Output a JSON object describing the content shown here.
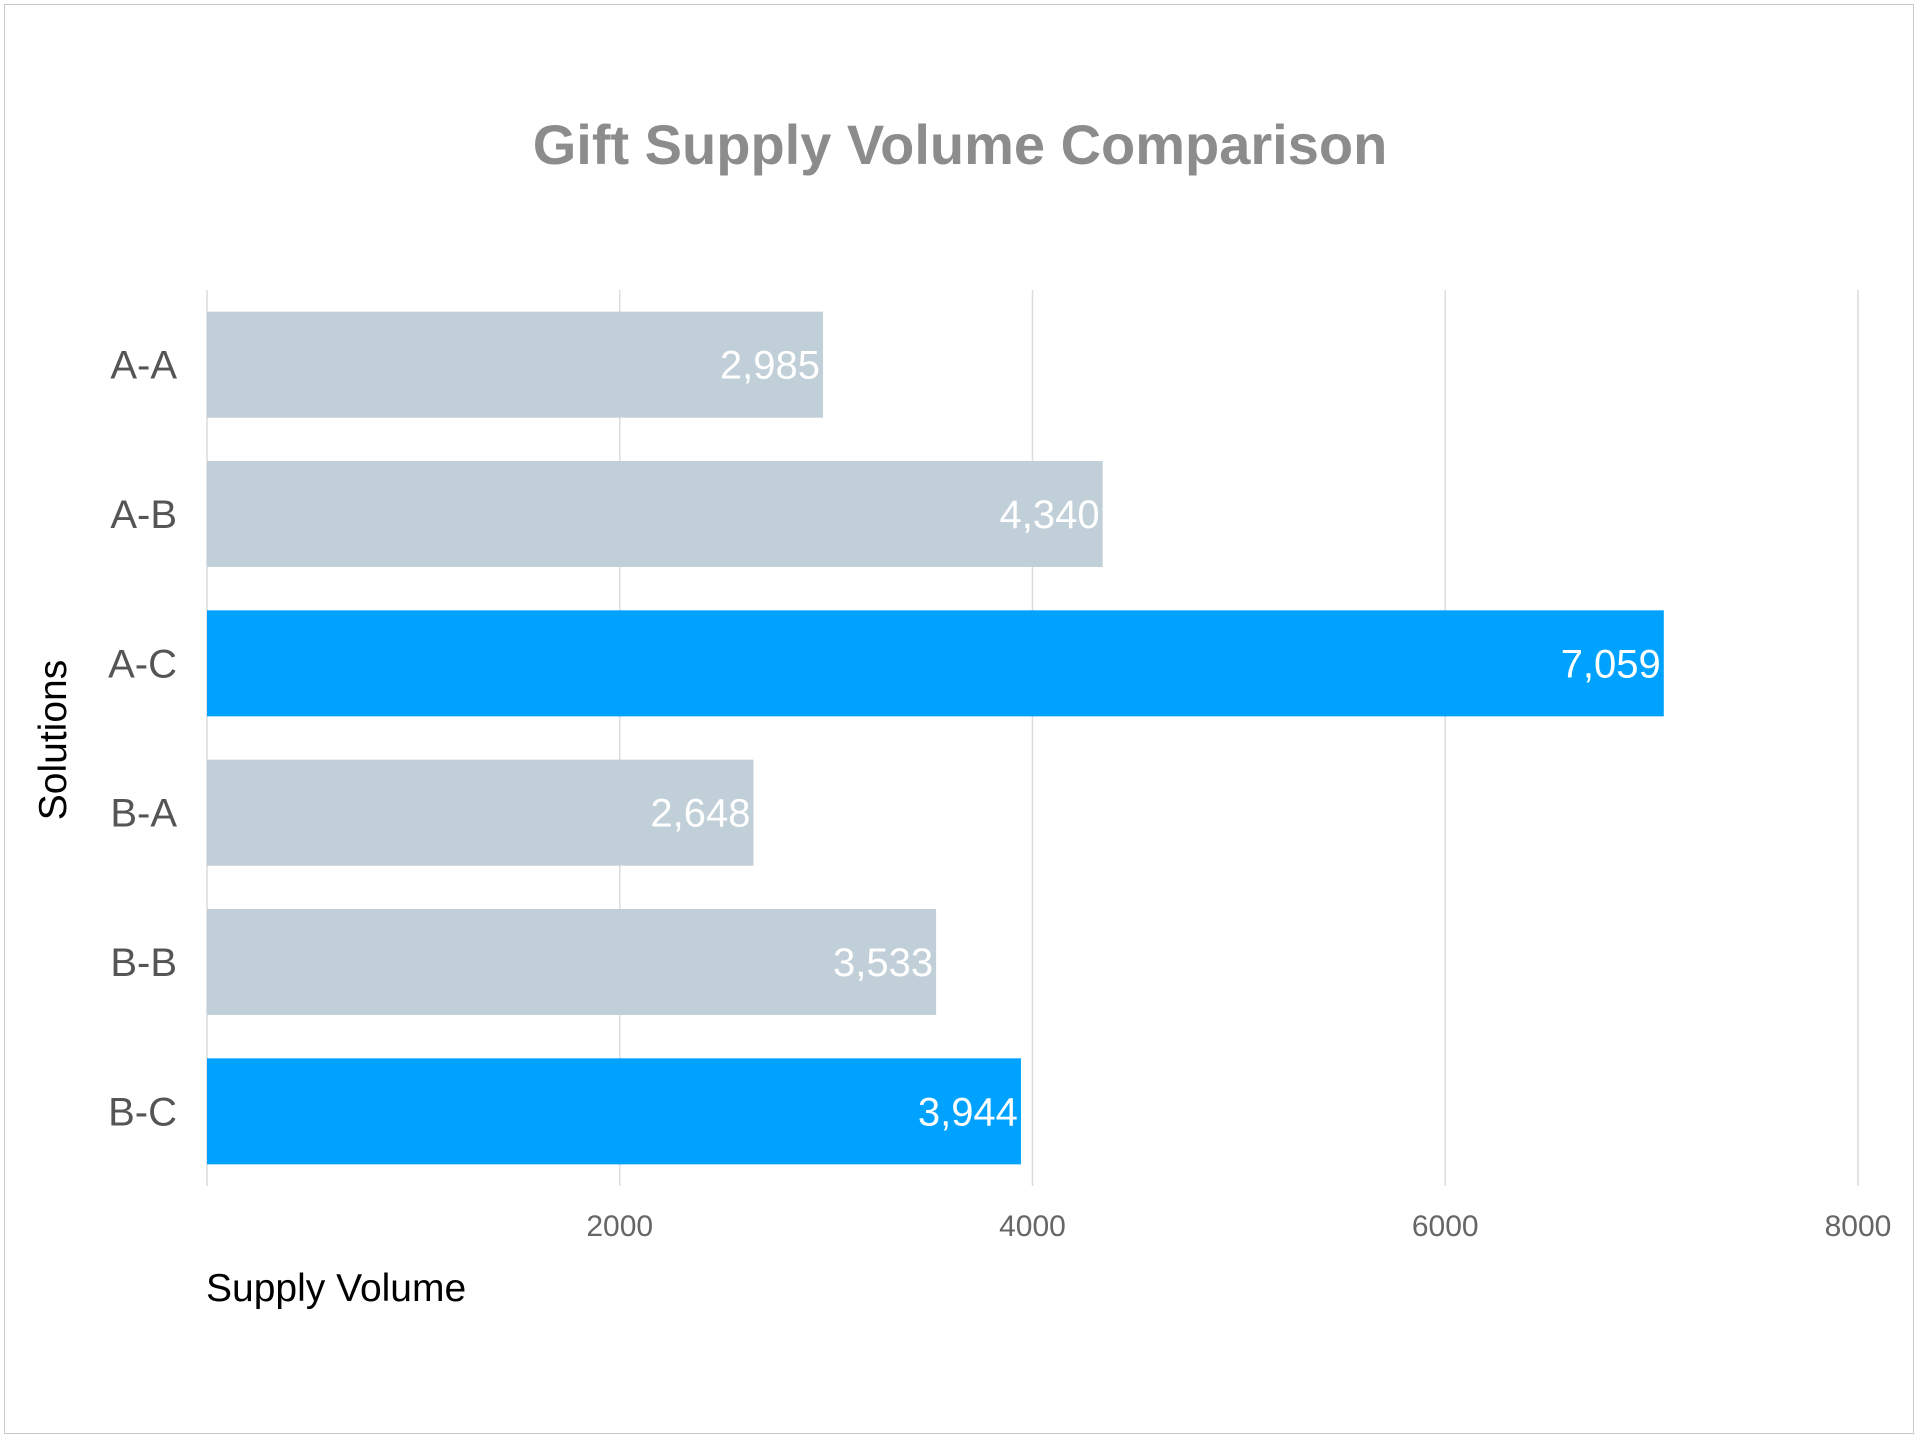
{
  "chart_data": {
    "type": "bar",
    "orientation": "horizontal",
    "title": "Gift Supply Volume Comparison",
    "xlabel": "Supply Volume",
    "ylabel": "Solutions",
    "categories": [
      "A-A",
      "A-B",
      "A-C",
      "B-A",
      "B-B",
      "B-C"
    ],
    "values": [
      2985,
      4340,
      7059,
      2648,
      3533,
      3944
    ],
    "value_labels": [
      "2,985",
      "4,340",
      "7,059",
      "2,648",
      "3,533",
      "3,944"
    ],
    "highlighted": [
      false,
      false,
      true,
      false,
      false,
      true
    ],
    "xlim": [
      0,
      8000
    ],
    "xticks": [
      2000,
      4000,
      6000,
      8000
    ],
    "xtick_labels": [
      "2000",
      "4000",
      "6000",
      "8000"
    ],
    "grid": "vertical",
    "colors": {
      "default_bar": "#c0cfd8",
      "highlight_bar": "#00a2ff",
      "title": "#8c8c8c",
      "grid": "#dcdcdc"
    }
  }
}
